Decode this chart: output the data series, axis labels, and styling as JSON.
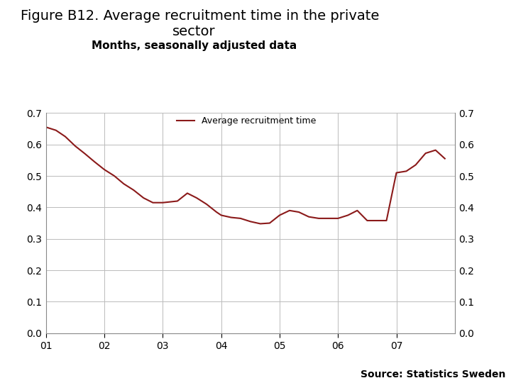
{
  "title_line1": "Figure B12. Average recruitment time in the private",
  "title_line2": "sector",
  "subtitle": "Months, seasonally adjusted data",
  "legend_label": "Average recruitment time",
  "line_color": "#8B1A1A",
  "background_color": "#FFFFFF",
  "source_text": "Source: Statistics Sweden",
  "ylim": [
    0.0,
    0.7
  ],
  "yticks": [
    0.0,
    0.1,
    0.2,
    0.3,
    0.4,
    0.5,
    0.6,
    0.7
  ],
  "xtick_labels": [
    "01",
    "02",
    "03",
    "04",
    "05",
    "06",
    "07"
  ],
  "x_values": [
    0.0,
    0.17,
    0.33,
    0.5,
    0.67,
    0.83,
    1.0,
    1.17,
    1.33,
    1.5,
    1.67,
    1.83,
    2.0,
    2.25,
    2.42,
    2.58,
    2.75,
    2.92,
    3.0,
    3.17,
    3.33,
    3.5,
    3.67,
    3.83,
    4.0,
    4.17,
    4.33,
    4.5,
    4.67,
    4.83,
    5.0,
    5.17,
    5.33,
    5.5,
    5.67,
    5.83,
    6.0,
    6.17,
    6.33,
    6.5,
    6.67,
    6.83
  ],
  "y_values": [
    0.655,
    0.645,
    0.625,
    0.595,
    0.57,
    0.545,
    0.52,
    0.5,
    0.475,
    0.455,
    0.43,
    0.415,
    0.415,
    0.42,
    0.445,
    0.43,
    0.41,
    0.385,
    0.375,
    0.368,
    0.365,
    0.355,
    0.348,
    0.35,
    0.375,
    0.39,
    0.385,
    0.37,
    0.365,
    0.365,
    0.365,
    0.375,
    0.39,
    0.358,
    0.358,
    0.358,
    0.51,
    0.515,
    0.535,
    0.572,
    0.582,
    0.555
  ],
  "grid_color": "#BBBBBB",
  "title_fontsize": 14,
  "subtitle_fontsize": 11,
  "tick_fontsize": 10,
  "legend_fontsize": 9,
  "source_fontsize": 10,
  "navy_bar_color": "#1F3864",
  "logo_color": "#1F3864"
}
